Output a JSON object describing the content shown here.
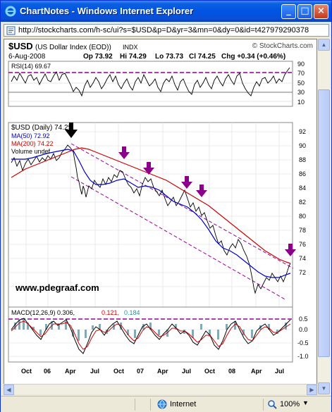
{
  "window": {
    "title": "ChartNotes - Windows Internet Explorer",
    "address": "http://stockcharts.com/h-sc/ui?s=$USD&p=D&yr=3&mn=0&dy=0&id=t427979290378"
  },
  "status": {
    "zone": "Internet",
    "zoom": "100%"
  },
  "icons": {
    "ie": "ie-logo-icon",
    "page": "page-icon",
    "globe": "globe-icon",
    "zoom": "magnifier-icon"
  },
  "chart": {
    "symbol": "$USD",
    "name": "(US Dollar Index (EOD))",
    "exchange": "INDX",
    "date": "6-Aug-2008",
    "ohlc": {
      "open": "Op 73.92",
      "high": "Hi 74.29",
      "low": "Lo 73.73",
      "close": "Cl 74.25",
      "change": "Chg +0.34 (+0.46%)"
    },
    "credit": "© StockCharts.com",
    "watermark": "www.pdegraaf.com",
    "rsi_label": "RSI(14) 69.67",
    "main_label": "$USD (Daily) 74.25",
    "ma50_label": "MA(50) 72.92",
    "ma200_label": "MA(200) 74.22",
    "volume_label": "Volume undef",
    "macd_label": "MACD(12,26,9) 0.306,",
    "macd_signal": "0.121,",
    "macd_hist": "0.184"
  },
  "chart_data": [
    {
      "type": "line",
      "panel": "RSI",
      "series": [
        {
          "name": "RSI(14) 69.67"
        }
      ],
      "y_ticks": [
        "90",
        "70",
        "50",
        "30",
        "10"
      ],
      "ylim": [
        10,
        90
      ],
      "reference_lines": [
        70,
        30
      ]
    },
    {
      "type": "line",
      "panel": "price",
      "x_ticks": [
        "Oct",
        "06",
        "Apr",
        "Jul",
        "Oct",
        "07",
        "Apr",
        "Jul",
        "Oct",
        "08",
        "Apr",
        "Jul"
      ],
      "y_ticks": [
        "92",
        "90",
        "88",
        "86",
        "84",
        "82",
        "80",
        "78",
        "76",
        "74",
        "72"
      ],
      "ylim": [
        71,
        93
      ],
      "series": [
        {
          "name": "$USD (Daily) 74.25",
          "color": "#000000",
          "x": [
            "Oct 05",
            "Dec 05",
            "Jan 06",
            "Feb 06",
            "Mar 06",
            "Apr 06",
            "May 06",
            "Jun 06",
            "Jul 06",
            "Aug 06",
            "Sep 06",
            "Oct 06",
            "Nov 06",
            "Dec 06",
            "Jan 07",
            "Feb 07",
            "Mar 07",
            "Apr 07",
            "May 07",
            "Jun 07",
            "Jul 07",
            "Aug 07",
            "Sep 07",
            "Oct 07",
            "Nov 07",
            "Dec 07",
            "Jan 08",
            "Feb 08",
            "Mar 08",
            "Apr 08",
            "May 08",
            "Jun 08",
            "Jul 08",
            "Aug 08"
          ],
          "values": [
            88.5,
            90.0,
            88.5,
            89.5,
            90.0,
            88.0,
            84.5,
            85.5,
            84.5,
            85.0,
            85.5,
            86.5,
            84.0,
            83.5,
            84.5,
            84.5,
            83.0,
            82.0,
            82.5,
            82.2,
            80.5,
            81.0,
            78.5,
            77.5,
            75.5,
            76.5,
            75.5,
            74.5,
            71.5,
            72.5,
            72.5,
            72.8,
            72.0,
            74.25
          ]
        },
        {
          "name": "MA(50) 72.92",
          "color": "#0000cc",
          "x": [
            "Oct 05",
            "Jan 06",
            "Apr 06",
            "Jul 06",
            "Oct 06",
            "Jan 07",
            "Apr 07",
            "Jul 07",
            "Oct 07",
            "Jan 08",
            "Apr 08",
            "Jul 08",
            "Aug 08"
          ],
          "values": [
            88.5,
            89.5,
            89.0,
            85.5,
            85.5,
            84.5,
            83.0,
            82.0,
            79.0,
            76.5,
            73.5,
            72.7,
            72.92
          ]
        },
        {
          "name": "MA(200) 74.22",
          "color": "#cc0000",
          "x": [
            "Oct 05",
            "Jan 06",
            "Apr 06",
            "Jul 06",
            "Oct 06",
            "Jan 07",
            "Apr 07",
            "Jul 07",
            "Oct 07",
            "Jan 08",
            "Apr 08",
            "Jul 08",
            "Aug 08"
          ],
          "values": [
            84.0,
            85.5,
            89.5,
            88.0,
            86.5,
            85.5,
            84.5,
            83.5,
            82.0,
            80.0,
            77.5,
            75.2,
            74.22
          ]
        }
      ],
      "annotations": [
        "black arrow near Apr 06 high",
        "purple arrows at Oct 06, Jan 07, Jun 07, Jul 07, Aug 08",
        "dashed purple down-trend channel"
      ]
    },
    {
      "type": "line",
      "panel": "MACD",
      "series": [
        {
          "name": "MACD(12,26,9) 0.306"
        },
        {
          "name": "0.121"
        },
        {
          "name": "0.184"
        }
      ],
      "y_ticks": [
        "0.5",
        "0.0",
        "-0.5",
        "-1.0"
      ],
      "ylim": [
        -1.25,
        0.75
      ],
      "reference_lines": [
        0.5
      ]
    }
  ]
}
